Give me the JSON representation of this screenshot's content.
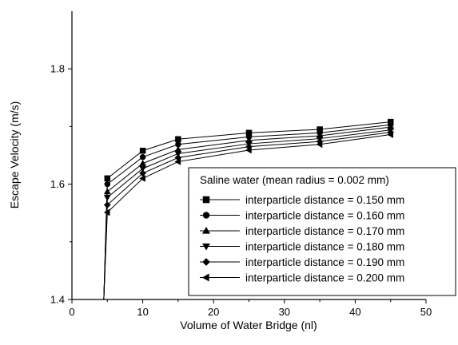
{
  "chart_data": {
    "type": "line",
    "title": "",
    "xlabel": "Volume of Water Bridge (nl)",
    "ylabel": "Escape Velocity (m/s)",
    "xlim": [
      0,
      50
    ],
    "ylim": [
      1.4,
      1.9
    ],
    "xticks": [
      "0",
      "10",
      "20",
      "30",
      "40",
      "50"
    ],
    "yticks": [
      "1.4",
      "1.6",
      "1.8"
    ],
    "grid": false,
    "legend_title": "Saline water (mean radius = 0.002 mm)",
    "legend_position": "bottom-right",
    "line_color": "#000000",
    "series": [
      {
        "name": "interparticle distance = 0.150 mm",
        "marker": "square",
        "x": [
          4.5,
          5,
          10,
          15,
          25,
          35,
          45
        ],
        "y": [
          1.4,
          1.61,
          1.658,
          1.678,
          1.689,
          1.695,
          1.708
        ]
      },
      {
        "name": "interparticle distance = 0.160 mm",
        "marker": "circle",
        "x": [
          4.5,
          5,
          10,
          15,
          25,
          35,
          45
        ],
        "y": [
          1.4,
          1.6,
          1.647,
          1.669,
          1.682,
          1.689,
          1.703
        ]
      },
      {
        "name": "interparticle distance = 0.170 mm",
        "marker": "triangle-up",
        "x": [
          4.5,
          5,
          10,
          15,
          25,
          35,
          45
        ],
        "y": [
          1.4,
          1.587,
          1.636,
          1.66,
          1.676,
          1.684,
          1.699
        ]
      },
      {
        "name": "interparticle distance = 0.180 mm",
        "marker": "triangle-down",
        "x": [
          4.5,
          5,
          10,
          15,
          25,
          35,
          45
        ],
        "y": [
          1.4,
          1.577,
          1.627,
          1.653,
          1.67,
          1.679,
          1.694
        ]
      },
      {
        "name": "interparticle distance = 0.190 mm",
        "marker": "diamond",
        "x": [
          4.5,
          5,
          10,
          15,
          25,
          35,
          45
        ],
        "y": [
          1.4,
          1.564,
          1.619,
          1.646,
          1.665,
          1.674,
          1.69
        ]
      },
      {
        "name": "interparticle distance = 0.200 mm",
        "marker": "triangle-left",
        "x": [
          4.5,
          5,
          10,
          15,
          25,
          35,
          45
        ],
        "y": [
          1.4,
          1.551,
          1.61,
          1.639,
          1.659,
          1.669,
          1.686
        ]
      }
    ]
  }
}
